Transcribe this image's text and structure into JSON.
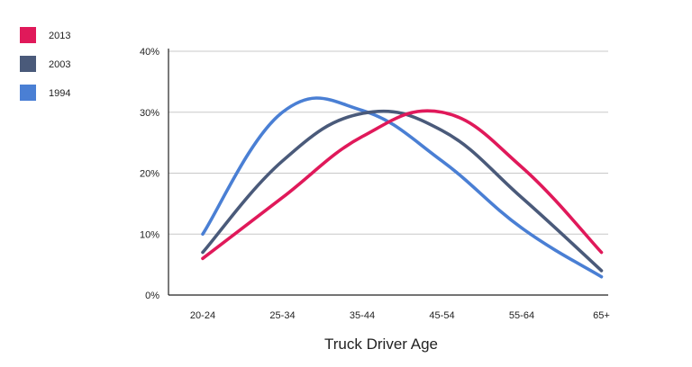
{
  "chart_data": {
    "type": "line",
    "categories": [
      "20-24",
      "25-34",
      "35-44",
      "45-54",
      "55-64",
      "65+"
    ],
    "x_positions": [
      0,
      1,
      1.72,
      3,
      4,
      5
    ],
    "series": [
      {
        "name": "2013",
        "color": "#e0195a",
        "values": [
          6,
          16,
          26,
          30,
          21,
          7
        ],
        "x": [
          0,
          1,
          2,
          3,
          4,
          5
        ]
      },
      {
        "name": "2003",
        "color": "#4a5a7a",
        "values": [
          7,
          22,
          29.8,
          27,
          16,
          4
        ],
        "x": [
          0,
          1,
          2,
          3,
          4,
          5
        ]
      },
      {
        "name": "1994",
        "color": "#4a7fd4",
        "values": [
          10,
          30,
          30.3,
          22,
          11,
          3
        ],
        "x": [
          0,
          1,
          2,
          3,
          4,
          5
        ]
      }
    ],
    "yticks": [
      "0%",
      "10%",
      "20%",
      "30%",
      "40%"
    ],
    "ylim": [
      0,
      40
    ],
    "xlabel": "Truck Driver Age",
    "ylabel": "",
    "title": "",
    "grid": true,
    "legend_position": "top-left"
  }
}
